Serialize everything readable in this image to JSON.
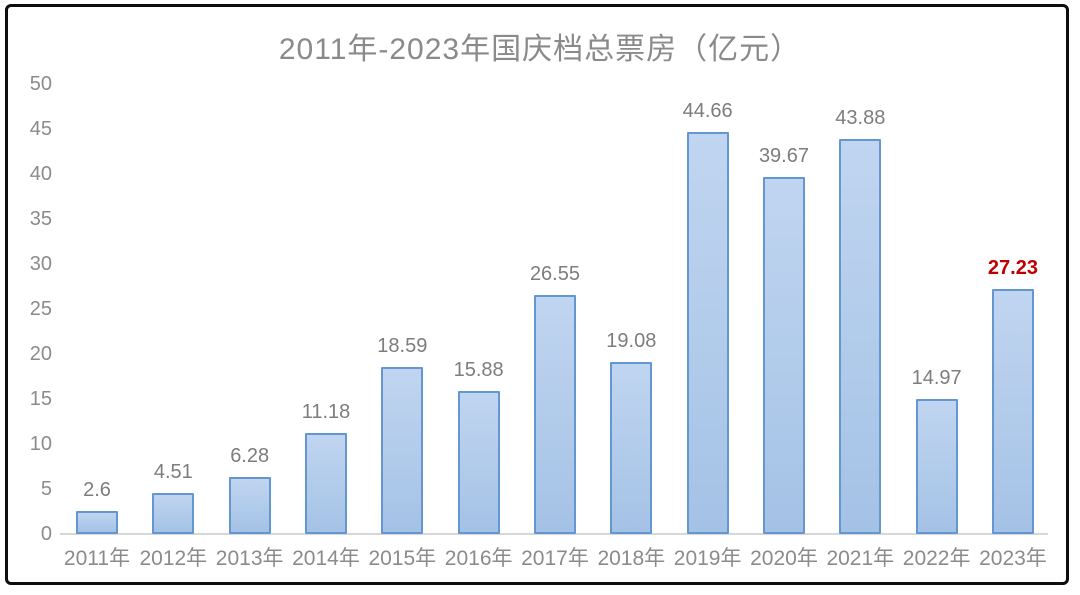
{
  "chart_data": {
    "type": "bar",
    "title": "2011年-2023年国庆档总票房（亿元）",
    "categories": [
      "2011年",
      "2012年",
      "2013年",
      "2014年",
      "2015年",
      "2016年",
      "2017年",
      "2018年",
      "2019年",
      "2020年",
      "2021年",
      "2022年",
      "2023年"
    ],
    "values": [
      2.6,
      4.51,
      6.28,
      11.18,
      18.59,
      15.88,
      26.55,
      19.08,
      44.66,
      39.67,
      43.88,
      14.97,
      27.23
    ],
    "value_labels": [
      "2.6",
      "4.51",
      "6.28",
      "11.18",
      "18.59",
      "15.88",
      "26.55",
      "19.08",
      "44.66",
      "39.67",
      "43.88",
      "14.97",
      "27.23"
    ],
    "xlabel": "",
    "ylabel": "",
    "ylim": [
      0,
      50
    ],
    "ytick_step": 5,
    "grid": false,
    "legend": "none",
    "highlight_index": 12,
    "colors": {
      "title": "#8a8a8a",
      "axis_ticks": "#8b8b8b",
      "value_label": "#7d7d7d",
      "highlight_label": "#c00000",
      "bar_fill_top": "#c0d5f0",
      "bar_fill_bottom": "#a4c2e6",
      "bar_border": "#6496d2",
      "axis_line": "#d7d7d7",
      "frame_border": "#0e0e0e"
    }
  }
}
